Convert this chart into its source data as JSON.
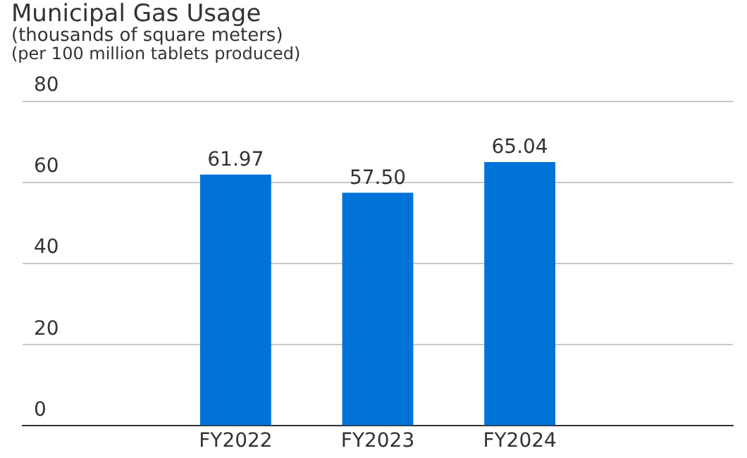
{
  "chart_data": {
    "type": "bar",
    "title": "Municipal Gas Usage",
    "subtitle": "(thousands of square meters)",
    "annotations": [
      "(per 100 million tablets produced)"
    ],
    "categories": [
      null,
      "FY2022",
      "FY2023",
      "FY2024",
      null
    ],
    "values": [
      null,
      61.97,
      57.5,
      65.04,
      null
    ],
    "value_labels": [
      null,
      "61.97",
      "57.50",
      "65.04",
      null
    ],
    "color": "#0073d9",
    "ylim": [
      0,
      80
    ],
    "yticks": [
      0,
      20,
      40,
      60,
      80
    ],
    "grid": "y"
  }
}
